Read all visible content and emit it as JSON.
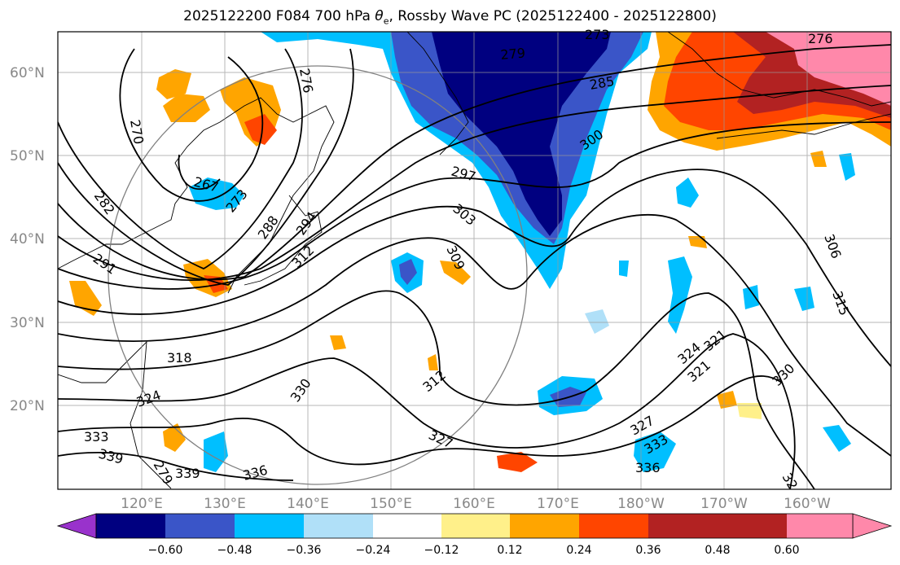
{
  "title_prefix": "2025122200 F084 700 hPa ",
  "title_symbol": "θ",
  "title_subscript": "e",
  "title_suffix": ", Rossby Wave PC (2025122400 - 2025122800)",
  "lat_labels": [
    "60°N",
    "50°N",
    "40°N",
    "30°N",
    "20°N"
  ],
  "lon_labels": [
    "120°E",
    "130°E",
    "140°E",
    "150°E",
    "160°E",
    "170°E",
    "180°W",
    "170°W",
    "160°W"
  ],
  "contour_labels": [
    "270",
    "282",
    "291",
    "267",
    "273",
    "276",
    "288",
    "294",
    "312",
    "318",
    "324",
    "330",
    "333",
    "339",
    "336",
    "279",
    "285",
    "297",
    "300",
    "303",
    "309",
    "312",
    "327",
    "324",
    "321",
    "321",
    "327",
    "333",
    "336",
    "330",
    "306",
    "315",
    "32",
    "276",
    "273",
    "279",
    "339"
  ],
  "colorbar": {
    "tick_labels": [
      "−0.60",
      "−0.48",
      "−0.36",
      "−0.24",
      "−0.12",
      "0.12",
      "0.24",
      "0.36",
      "0.48",
      "0.60"
    ],
    "colors": [
      "#9932cc",
      "#000080",
      "#3a55c8",
      "#00bfff",
      "#b0e0f8",
      "#ffffff",
      "#fff08a",
      "#ffa500",
      "#ff4500",
      "#b22222",
      "#ff88aa"
    ]
  }
}
